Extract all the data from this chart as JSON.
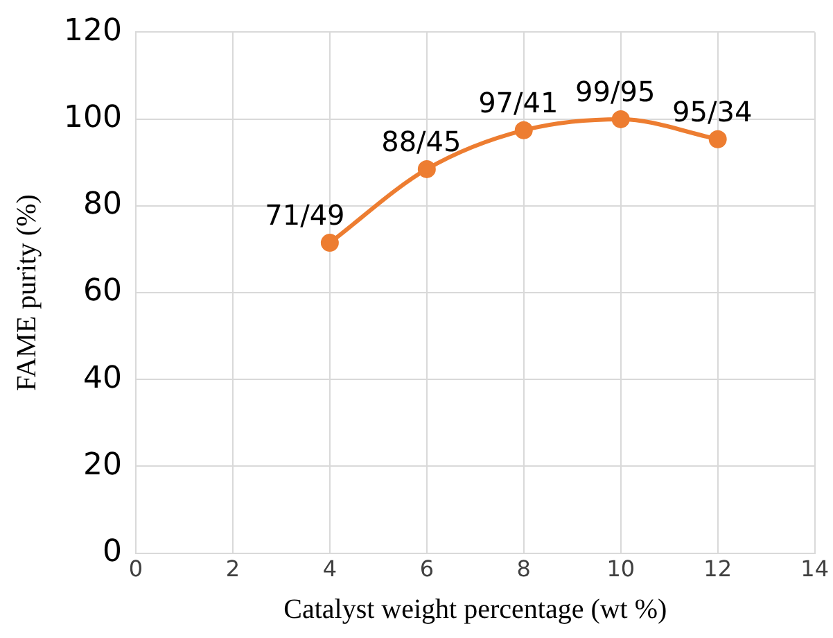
{
  "chart_data": {
    "type": "line",
    "xlabel": "Catalyst weight percentage (wt %)",
    "ylabel": "FAME purity (%)",
    "x": [
      4,
      6,
      8,
      10,
      12
    ],
    "series": [
      {
        "color": "#ed7d31",
        "values": [
          71.49,
          88.45,
          97.41,
          99.95,
          95.34
        ],
        "value_labels": [
          "71/49",
          "88/45",
          "97/41",
          "99/95",
          "95/34"
        ]
      }
    ],
    "xlim": [
      0,
      14
    ],
    "xticks": [
      0,
      2,
      4,
      6,
      8,
      10,
      12,
      14
    ],
    "ylim": [
      0,
      120
    ],
    "yticks": [
      0,
      20,
      40,
      60,
      80,
      100,
      120
    ],
    "grid": true,
    "marker": "circle",
    "line_style": "solid",
    "legend": false
  }
}
